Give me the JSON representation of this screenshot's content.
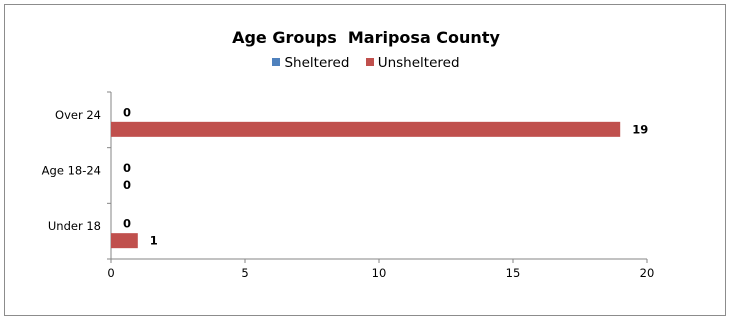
{
  "colors": {
    "sheltered": "#4f81bd",
    "unsheltered": "#c0504d"
  },
  "chart_data": {
    "type": "bar",
    "orientation": "horizontal",
    "title": "Age Groups  Mariposa County",
    "categories": [
      "Over 24",
      "Age 18-24",
      "Under 18"
    ],
    "series": [
      {
        "name": "Sheltered",
        "values": [
          0,
          0,
          0
        ]
      },
      {
        "name": "Unsheltered",
        "values": [
          19,
          0,
          1
        ]
      }
    ],
    "xlim": [
      0,
      20
    ],
    "xticks": [
      "0",
      "5",
      "10",
      "15",
      "20"
    ],
    "legend_position": "top",
    "grid": false
  }
}
